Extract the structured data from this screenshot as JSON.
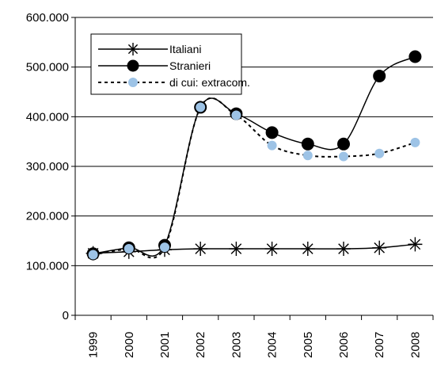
{
  "chart_data": {
    "type": "line",
    "title": "",
    "xlabel": "",
    "ylabel": "",
    "categories": [
      "1999",
      "2000",
      "2001",
      "2002",
      "2003",
      "2004",
      "2005",
      "2006",
      "2007",
      "2008"
    ],
    "ylim": [
      0,
      600000
    ],
    "yticks": [
      0,
      100000,
      200000,
      300000,
      400000,
      500000,
      600000
    ],
    "ytick_labels": [
      "0",
      "100.000",
      "200.000",
      "300.000",
      "400.000",
      "500.000",
      "600.000"
    ],
    "grid": "horizontal",
    "legend_position": "top-left",
    "series": [
      {
        "name": "Italiani",
        "values": [
          125000,
          128000,
          132000,
          134000,
          134000,
          134000,
          134000,
          134000,
          136000,
          143000
        ],
        "marker": "asterisk",
        "line": "solid",
        "color": "#000000"
      },
      {
        "name": "Stranieri",
        "values": [
          124000,
          136000,
          141000,
          419000,
          406000,
          368000,
          345000,
          345000,
          482000,
          521000
        ],
        "marker": "filled-circle",
        "line": "solid",
        "color": "#000000"
      },
      {
        "name": "di cui: extracom.",
        "values": [
          122000,
          134000,
          137000,
          419000,
          403000,
          342000,
          322000,
          320000,
          326000,
          348000
        ],
        "marker": "filled-circle",
        "line": "dashed",
        "color": "#9DC3E6"
      }
    ]
  }
}
